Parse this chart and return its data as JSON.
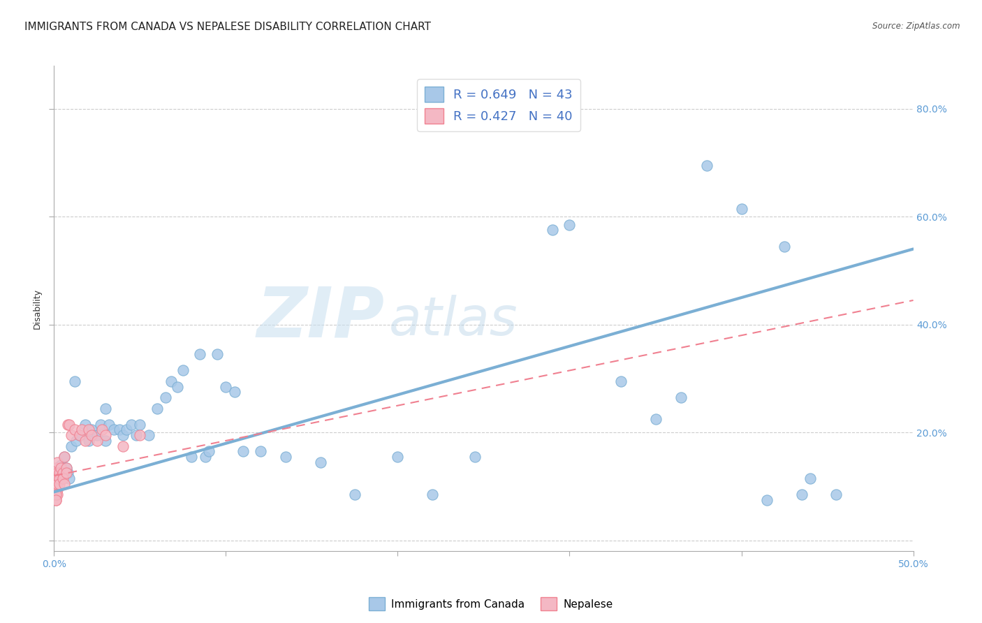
{
  "title": "IMMIGRANTS FROM CANADA VS NEPALESE DISABILITY CORRELATION CHART",
  "source": "Source: ZipAtlas.com",
  "ylabel": "Disability",
  "xlim": [
    0.0,
    0.5
  ],
  "ylim": [
    -0.02,
    0.88
  ],
  "ytick_vals": [
    0.0,
    0.2,
    0.4,
    0.6,
    0.8
  ],
  "ytick_labels": [
    "",
    "20.0%",
    "40.0%",
    "60.0%",
    "80.0%"
  ],
  "blue_scatter": [
    [
      0.001,
      0.125
    ],
    [
      0.002,
      0.135
    ],
    [
      0.003,
      0.12
    ],
    [
      0.004,
      0.14
    ],
    [
      0.005,
      0.125
    ],
    [
      0.006,
      0.155
    ],
    [
      0.007,
      0.135
    ],
    [
      0.008,
      0.125
    ],
    [
      0.009,
      0.115
    ],
    [
      0.01,
      0.175
    ],
    [
      0.012,
      0.295
    ],
    [
      0.013,
      0.185
    ],
    [
      0.015,
      0.195
    ],
    [
      0.018,
      0.215
    ],
    [
      0.02,
      0.185
    ],
    [
      0.022,
      0.205
    ],
    [
      0.025,
      0.195
    ],
    [
      0.027,
      0.215
    ],
    [
      0.03,
      0.245
    ],
    [
      0.03,
      0.185
    ],
    [
      0.032,
      0.215
    ],
    [
      0.035,
      0.205
    ],
    [
      0.038,
      0.205
    ],
    [
      0.04,
      0.195
    ],
    [
      0.042,
      0.205
    ],
    [
      0.045,
      0.215
    ],
    [
      0.048,
      0.195
    ],
    [
      0.05,
      0.215
    ],
    [
      0.055,
      0.195
    ],
    [
      0.06,
      0.245
    ],
    [
      0.065,
      0.265
    ],
    [
      0.068,
      0.295
    ],
    [
      0.072,
      0.285
    ],
    [
      0.075,
      0.315
    ],
    [
      0.08,
      0.155
    ],
    [
      0.085,
      0.345
    ],
    [
      0.088,
      0.155
    ],
    [
      0.09,
      0.165
    ],
    [
      0.095,
      0.345
    ],
    [
      0.1,
      0.285
    ],
    [
      0.105,
      0.275
    ],
    [
      0.11,
      0.165
    ],
    [
      0.12,
      0.165
    ],
    [
      0.135,
      0.155
    ],
    [
      0.155,
      0.145
    ],
    [
      0.175,
      0.085
    ],
    [
      0.2,
      0.155
    ],
    [
      0.22,
      0.085
    ],
    [
      0.245,
      0.155
    ],
    [
      0.29,
      0.575
    ],
    [
      0.3,
      0.585
    ],
    [
      0.33,
      0.295
    ],
    [
      0.35,
      0.225
    ],
    [
      0.365,
      0.265
    ],
    [
      0.38,
      0.695
    ],
    [
      0.4,
      0.615
    ],
    [
      0.415,
      0.075
    ],
    [
      0.425,
      0.545
    ],
    [
      0.435,
      0.085
    ],
    [
      0.44,
      0.115
    ],
    [
      0.455,
      0.085
    ]
  ],
  "pink_scatter": [
    [
      0.001,
      0.125
    ],
    [
      0.001,
      0.135
    ],
    [
      0.001,
      0.105
    ],
    [
      0.001,
      0.095
    ],
    [
      0.001,
      0.115
    ],
    [
      0.001,
      0.085
    ],
    [
      0.001,
      0.075
    ],
    [
      0.002,
      0.125
    ],
    [
      0.002,
      0.115
    ],
    [
      0.002,
      0.145
    ],
    [
      0.002,
      0.095
    ],
    [
      0.002,
      0.105
    ],
    [
      0.002,
      0.085
    ],
    [
      0.003,
      0.125
    ],
    [
      0.003,
      0.115
    ],
    [
      0.003,
      0.105
    ],
    [
      0.004,
      0.135
    ],
    [
      0.005,
      0.125
    ],
    [
      0.005,
      0.115
    ],
    [
      0.006,
      0.155
    ],
    [
      0.006,
      0.105
    ],
    [
      0.007,
      0.135
    ],
    [
      0.007,
      0.125
    ],
    [
      0.008,
      0.215
    ],
    [
      0.009,
      0.215
    ],
    [
      0.01,
      0.195
    ],
    [
      0.012,
      0.205
    ],
    [
      0.015,
      0.195
    ],
    [
      0.016,
      0.205
    ],
    [
      0.018,
      0.185
    ],
    [
      0.02,
      0.205
    ],
    [
      0.022,
      0.195
    ],
    [
      0.025,
      0.185
    ],
    [
      0.028,
      0.205
    ],
    [
      0.03,
      0.195
    ],
    [
      0.04,
      0.175
    ],
    [
      0.05,
      0.195
    ],
    [
      0.001,
      0.085
    ],
    [
      0.001,
      0.075
    ]
  ],
  "blue_line": {
    "x0": 0.0,
    "y0": 0.09,
    "x1": 0.5,
    "y1": 0.54
  },
  "pink_line": {
    "x0": 0.0,
    "y0": 0.12,
    "x1": 0.5,
    "y1": 0.445
  },
  "bg_color": "#ffffff",
  "grid_color": "#cccccc",
  "blue_color": "#7bafd4",
  "blue_color_light": "#a8c8e8",
  "pink_color": "#f08090",
  "pink_color_light": "#f4b8c4",
  "title_fontsize": 11,
  "axis_label_fontsize": 9,
  "tick_fontsize": 10,
  "tick_color": "#5b9bd5",
  "legend_text_color": "#333333",
  "legend_value_color": "#4472c4",
  "marker_size": 120,
  "watermark_zip_color": "#c8dff0",
  "watermark_atlas_color": "#b8d4e8"
}
